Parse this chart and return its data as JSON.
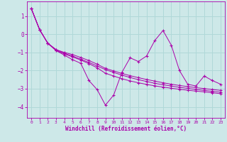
{
  "xlabel": "Windchill (Refroidissement éolien,°C)",
  "background_color": "#cde8e8",
  "grid_color": "#b0d8d8",
  "line_color": "#aa00aa",
  "xlim": [
    -0.5,
    23.5
  ],
  "ylim": [
    -4.6,
    1.8
  ],
  "yticks": [
    -4,
    -3,
    -2,
    -1,
    0,
    1
  ],
  "xticks": [
    0,
    1,
    2,
    3,
    4,
    5,
    6,
    7,
    8,
    9,
    10,
    11,
    12,
    13,
    14,
    15,
    16,
    17,
    18,
    19,
    20,
    21,
    22,
    23
  ],
  "lines": [
    [
      1.4,
      0.25,
      -0.5,
      -0.85,
      -1.05,
      -1.2,
      -1.38,
      -1.55,
      -1.75,
      -1.95,
      -2.1,
      -2.25,
      -2.38,
      -2.5,
      -2.6,
      -2.7,
      -2.78,
      -2.85,
      -2.92,
      -2.98,
      -3.04,
      -3.09,
      -3.14,
      -3.19
    ],
    [
      1.4,
      0.25,
      -0.5,
      -0.9,
      -1.15,
      -1.4,
      -1.6,
      -2.55,
      -3.05,
      -3.9,
      -3.35,
      -2.1,
      -1.3,
      -1.5,
      -1.2,
      -0.35,
      0.2,
      -0.6,
      -2.0,
      -2.75,
      -2.85,
      -2.3,
      -2.55,
      -2.75
    ],
    [
      1.4,
      0.25,
      -0.5,
      -0.9,
      -1.08,
      -1.25,
      -1.42,
      -1.62,
      -1.85,
      -2.15,
      -2.3,
      -2.45,
      -2.57,
      -2.67,
      -2.76,
      -2.84,
      -2.91,
      -2.97,
      -3.03,
      -3.08,
      -3.13,
      -3.17,
      -3.22,
      -3.27
    ],
    [
      1.4,
      0.25,
      -0.5,
      -0.85,
      -1.0,
      -1.12,
      -1.28,
      -1.45,
      -1.65,
      -1.88,
      -2.02,
      -2.16,
      -2.28,
      -2.39,
      -2.49,
      -2.58,
      -2.67,
      -2.75,
      -2.82,
      -2.88,
      -2.94,
      -2.99,
      -3.04,
      -3.09
    ]
  ]
}
